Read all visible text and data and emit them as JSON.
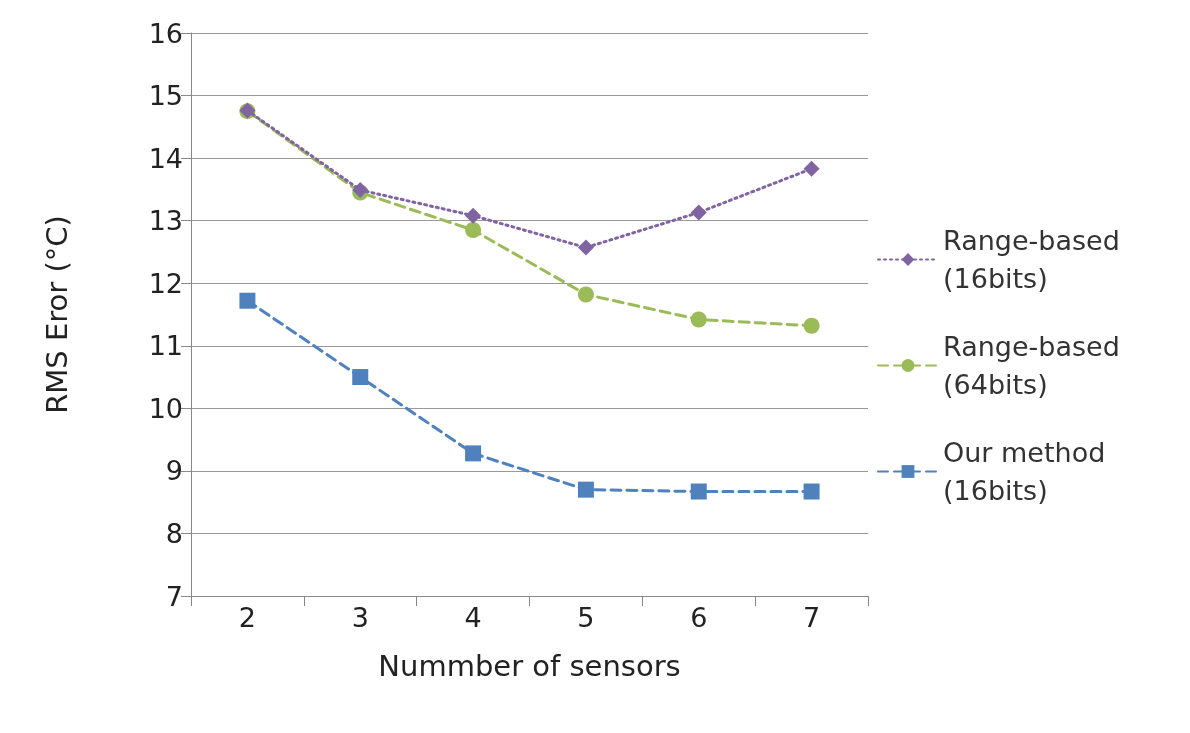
{
  "chart_data": {
    "type": "line",
    "xlabel": "Nummber of sensors",
    "ylabel": "RMS Eror (°C)",
    "categories": [
      "2",
      "3",
      "4",
      "5",
      "6",
      "7"
    ],
    "series": [
      {
        "name": "Range-based (16bits)",
        "color": "#8064a2",
        "values": [
          14.76,
          13.49,
          13.08,
          12.57,
          13.13,
          13.83
        ],
        "marker": "diamond",
        "line_style": "dotted"
      },
      {
        "name": "Range-based (64bits)",
        "color": "#9bbb59",
        "values": [
          14.75,
          13.45,
          12.85,
          11.82,
          11.42,
          11.32
        ],
        "marker": "circle",
        "line_style": "dashed"
      },
      {
        "name": "Our method (16bits)",
        "color": "#4f81bd",
        "values": [
          11.72,
          10.5,
          9.28,
          8.7,
          8.67,
          8.67
        ],
        "marker": "square",
        "line_style": "dashed"
      }
    ],
    "ylim": [
      7,
      16
    ],
    "yticks": [
      7,
      8,
      9,
      10,
      11,
      12,
      13,
      14,
      15,
      16
    ],
    "grid": "y",
    "legend": "right"
  }
}
